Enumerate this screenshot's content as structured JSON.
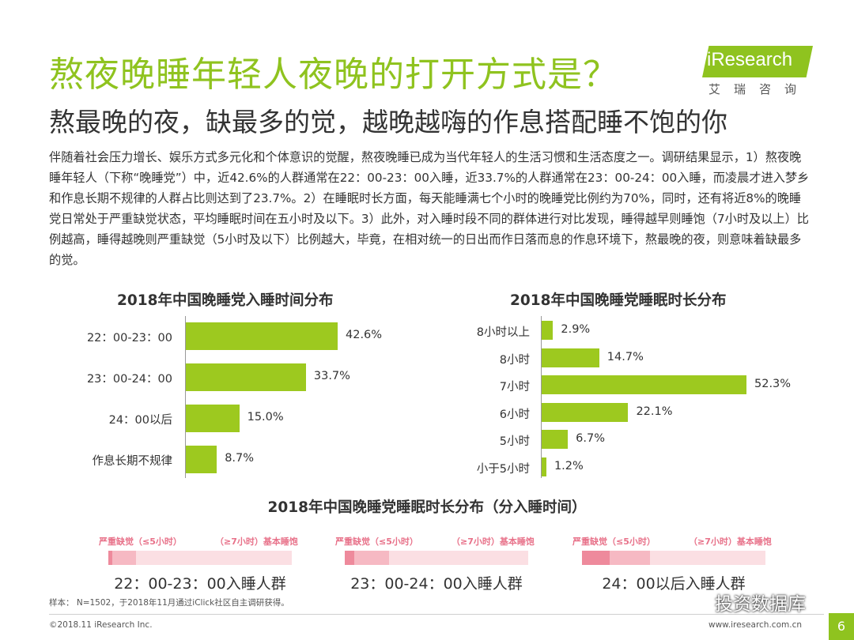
{
  "title": "熬夜晚睡年轻人夜晚的打开方式是？",
  "subtitle": "熬最晚的夜，缺最多的觉，越晚越嗨的作息搭配睡不饱的你",
  "logo": {
    "brand": "iResearch",
    "cn": "艾瑞咨询",
    "color": "#8fc31f"
  },
  "body_text": "伴随着社会压力增长、娱乐方式多元化和个体意识的觉醒，熬夜晚睡已成为当代年轻人的生活习惯和生活态度之一。调研结果显示，1）熬夜晚睡年轻人（下称“晚睡党”）中，近42.6%的人群通常在22：00-23：00入睡，近33.7%的人群通常在23：00-24：00入睡，而凌晨才进入梦乡和作息长期不规律的人群占比则达到了23.7%。2）在睡眠时长方面，每天能睡满七个小时的晚睡党比例约为70%，同时，还有将近8%的晚睡党日常处于严重缺觉状态，平均睡眠时间在五小时及以下。3）此外，对入睡时段不同的群体进行对比发现，睡得越早则睡饱（7小时及以上）比例越高，睡得越晚则严重缺觉（5小时及以下）比例越大，毕竟，在相对统一的日出而作日落而息的作息环境下，熬最晚的夜，则意味着缺最多的觉。",
  "chart_data": [
    {
      "type": "bar",
      "orientation": "horizontal",
      "title": "2018年中国晚睡党入睡时间分布",
      "categories": [
        "22：00-23：00",
        "23：00-24：00",
        "24：00以后",
        "作息长期不规律"
      ],
      "values": [
        42.6,
        33.7,
        15.0,
        8.7
      ],
      "labels": [
        "42.6%",
        "33.7%",
        "15.0%",
        "8.7%"
      ],
      "unit": "%",
      "color": "#9dc91f",
      "grid": false
    },
    {
      "type": "bar",
      "orientation": "horizontal",
      "title": "2018年中国晚睡党睡眠时长分布",
      "categories": [
        "8小时以上",
        "8小时",
        "7小时",
        "6小时",
        "5小时",
        "小于5小时"
      ],
      "values": [
        2.9,
        14.7,
        52.3,
        22.1,
        6.7,
        1.2
      ],
      "labels": [
        "2.9%",
        "14.7%",
        "52.3%",
        "22.1%",
        "6.7%",
        "1.2%"
      ],
      "unit": "%",
      "color": "#9dc91f",
      "grid": false
    },
    {
      "type": "bar",
      "orientation": "horizontal",
      "stacked": true,
      "title": "2018年中国晚睡党睡眠时长分布（分入睡时间）",
      "legend_left": "严重缺觉（≤5小时）",
      "legend_right": "（≥7小时）基本睡饱",
      "groups": [
        {
          "label": "22：00-23：00入睡人群",
          "severe": 2,
          "mid": 13,
          "full": 85
        },
        {
          "label": "23：00-24：00入睡人群",
          "severe": 5,
          "mid": 19,
          "full": 76
        },
        {
          "label": "24：00以后入睡人群",
          "severe": 15,
          "mid": 22,
          "full": 63
        }
      ],
      "colors": {
        "severe": "#ee8a9c",
        "mid": "#f6b9c3",
        "full": "#fbdfe3"
      }
    }
  ],
  "footer": {
    "sample": "样本： N=1502，于2018年11月通过iClick社区自主调研获得。",
    "copyright": "©2018.11 iResearch Inc.",
    "website": "www.iresearch.com.cn",
    "page": "6"
  },
  "watermark": "投资数据库"
}
